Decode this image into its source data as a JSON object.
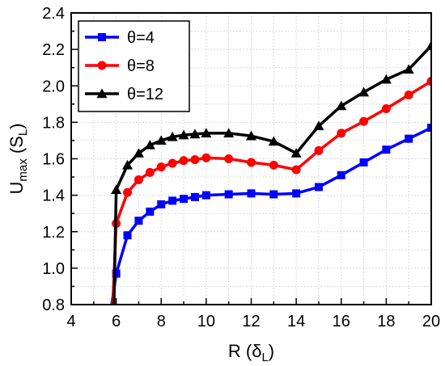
{
  "chart_data": {
    "type": "line",
    "xlabel": {
      "main": "R (δ",
      "sub": "L",
      "tail": ")"
    },
    "ylabel": {
      "main": "U",
      "sub1": "max",
      "mid": " (S",
      "sub2": "L",
      "tail": ")"
    },
    "xlim": [
      4,
      20
    ],
    "ylim": [
      0.8,
      2.4
    ],
    "xticks": [
      4,
      6,
      8,
      10,
      12,
      14,
      16,
      18,
      20
    ],
    "yticks": [
      0.8,
      1.0,
      1.2,
      1.4,
      1.6,
      1.8,
      2.0,
      2.2,
      2.4
    ],
    "xtick_labels": [
      "4",
      "6",
      "8",
      "10",
      "12",
      "14",
      "16",
      "18",
      "20"
    ],
    "ytick_labels": [
      "0.8",
      "1.0",
      "1.2",
      "1.4",
      "1.6",
      "1.8",
      "2.0",
      "2.2",
      "2.4"
    ],
    "grid": true,
    "legend_position": "top-left",
    "series": [
      {
        "name": "θ=4",
        "color": "#0000ff",
        "marker": "square",
        "x": [
          5.8,
          6.0,
          6.5,
          7.0,
          7.5,
          8.0,
          8.5,
          9.0,
          9.5,
          10.0,
          11.0,
          12.0,
          13.0,
          14.0,
          15.0,
          16.0,
          17.0,
          18.0,
          19.0,
          20.0
        ],
        "y": [
          0.8,
          0.97,
          1.18,
          1.26,
          1.31,
          1.35,
          1.37,
          1.38,
          1.39,
          1.4,
          1.405,
          1.41,
          1.405,
          1.41,
          1.445,
          1.51,
          1.58,
          1.65,
          1.71,
          1.77
        ],
        "markers_from": 1
      },
      {
        "name": "θ=8",
        "color": "#ff0000",
        "marker": "circle",
        "x": [
          5.85,
          6.0,
          6.5,
          7.0,
          7.5,
          8.0,
          8.5,
          9.0,
          9.5,
          10.0,
          11.0,
          12.0,
          13.0,
          14.0,
          15.0,
          16.0,
          17.0,
          18.0,
          19.0,
          20.0
        ],
        "y": [
          0.8,
          1.245,
          1.415,
          1.485,
          1.525,
          1.555,
          1.575,
          1.59,
          1.595,
          1.605,
          1.6,
          1.58,
          1.565,
          1.54,
          1.645,
          1.74,
          1.805,
          1.875,
          1.95,
          2.025
        ],
        "markers_from": 1
      },
      {
        "name": "θ=12",
        "color": "#000000",
        "marker": "triangle",
        "x": [
          5.9,
          6.0,
          6.5,
          7.0,
          7.5,
          8.0,
          8.5,
          9.0,
          9.5,
          10.0,
          11.0,
          12.0,
          13.0,
          14.0,
          15.0,
          16.0,
          17.0,
          18.0,
          19.0,
          20.0
        ],
        "y": [
          0.8,
          1.43,
          1.565,
          1.63,
          1.675,
          1.7,
          1.72,
          1.73,
          1.735,
          1.74,
          1.74,
          1.725,
          1.695,
          1.63,
          1.78,
          1.89,
          1.965,
          2.035,
          2.09,
          2.22
        ],
        "markers_from": 1
      }
    ]
  }
}
